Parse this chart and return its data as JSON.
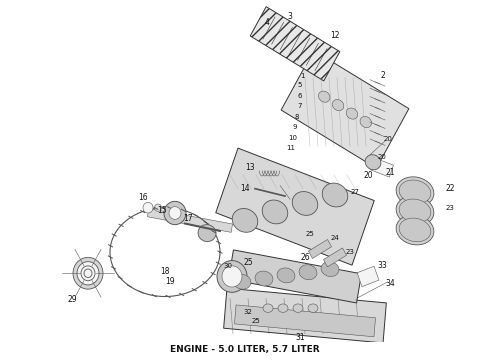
{
  "caption": "ENGINE - 5.0 LITER, 5.7 LITER",
  "caption_fontsize": 6.5,
  "caption_fontweight": "bold",
  "caption_color": "#111111",
  "background_color": "#ffffff",
  "fig_width": 4.9,
  "fig_height": 3.6,
  "dpi": 100,
  "bg_gray": "#f4f4f4",
  "dark_gray": "#555555",
  "mid_gray": "#888888",
  "light_gray": "#dddddd",
  "line_color": "#333333",
  "lw_main": 0.7,
  "lw_thin": 0.4
}
